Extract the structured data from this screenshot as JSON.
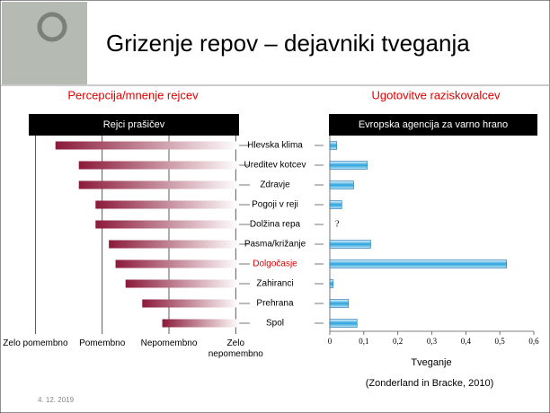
{
  "slide": {
    "title": "Grizenje repov – dejavniki tveganja",
    "date": "4. 12. 2019",
    "source": "(Zonderland in Bracke, 2010)"
  },
  "chart_data": [
    {
      "type": "bar",
      "orientation": "horizontal",
      "subtitle": "Percepcija/mnenje rejcev",
      "header": "Rejci prašičev",
      "categories": [
        "Hlevska klima",
        "Ureditev kotcev",
        "Zdravje",
        "Pogoji v reji",
        "Dolžina repa",
        "Pasma/križanje",
        "Dolgočasje",
        "Zahiranci",
        "Prehrana",
        "Spol"
      ],
      "category_colors": [
        "#000000",
        "#000000",
        "#000000",
        "#000000",
        "#000000",
        "#000000",
        "#e00000",
        "#000000",
        "#000000",
        "#000000"
      ],
      "values": [
        1.3,
        1.65,
        1.65,
        1.9,
        1.9,
        2.1,
        2.2,
        2.35,
        2.6,
        2.9
      ],
      "color": "#8b1a3a",
      "xlim": [
        0.9,
        4.05
      ],
      "xticks": [
        {
          "value": 1,
          "label": "Zelo pomembno"
        },
        {
          "value": 2,
          "label": "Pomembno"
        },
        {
          "value": 3,
          "label": "Nepomembno"
        },
        {
          "value": 4,
          "label": "Zelo nepomembno"
        }
      ],
      "grid": true
    },
    {
      "type": "bar",
      "orientation": "horizontal",
      "subtitle": "Ugotovitve raziskovalcev",
      "header": "Evropska agencija za varno hrano",
      "values": [
        0.02,
        0.11,
        0.07,
        0.035,
        null,
        0.12,
        0.52,
        0.01,
        0.055,
        0.08
      ],
      "annotation": "?",
      "color": "#29a3dc",
      "xlabel": "Tveganje",
      "xlim": [
        0,
        0.6
      ],
      "xticks": [
        0,
        {
          "value": 0.1,
          "label": "0,1"
        },
        {
          "value": 0.2,
          "label": "0,2"
        },
        {
          "value": 0.3,
          "label": "0,3"
        },
        {
          "value": 0.4,
          "label": "0,4"
        },
        {
          "value": 0.5,
          "label": "0,5"
        },
        {
          "value": 0.6,
          "label": "0,6"
        }
      ],
      "grid": false
    }
  ]
}
